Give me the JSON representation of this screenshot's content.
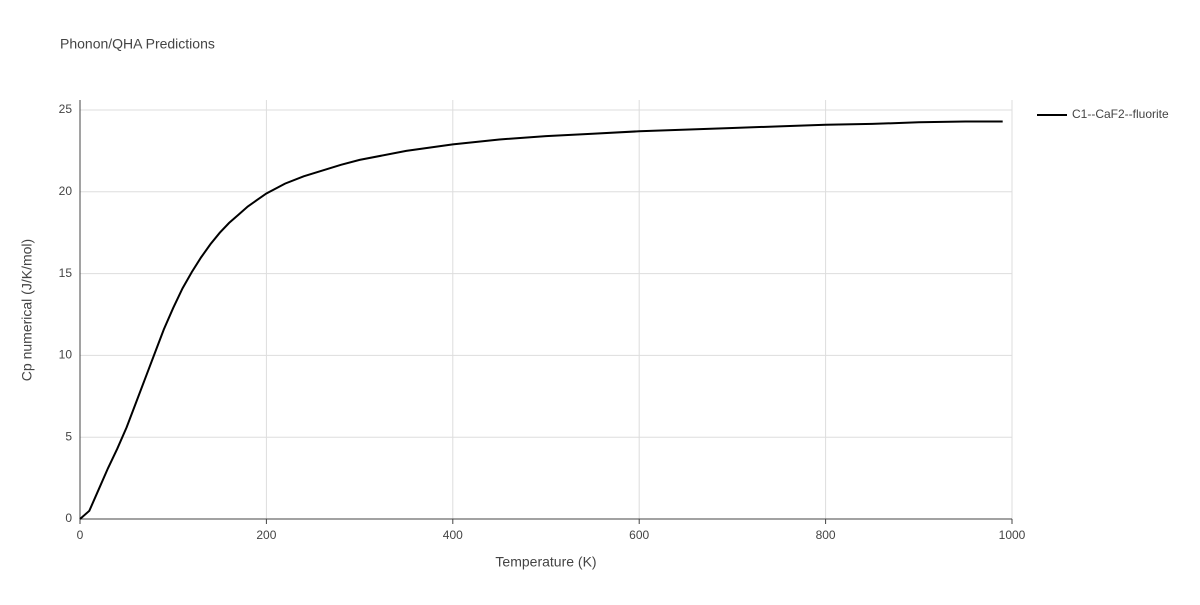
{
  "chart_data": {
    "type": "line",
    "title": "Phonon/QHA Predictions",
    "x_label": "Temperature (K)",
    "y_label": "Cp numerical (J/K/mol)",
    "x": [
      0,
      10,
      20,
      30,
      40,
      50,
      60,
      70,
      80,
      90,
      100,
      110,
      120,
      130,
      140,
      150,
      160,
      170,
      180,
      190,
      200,
      220,
      240,
      260,
      280,
      300,
      350,
      400,
      450,
      500,
      550,
      600,
      650,
      700,
      750,
      800,
      850,
      900,
      950,
      990
    ],
    "series": [
      {
        "name": "C1--CaF2--fluorite",
        "color": "#000000",
        "values": [
          0,
          0.5,
          1.8,
          3.1,
          4.3,
          5.6,
          7.1,
          8.6,
          10.1,
          11.6,
          12.9,
          14.1,
          15.1,
          16.0,
          16.8,
          17.5,
          18.1,
          18.6,
          19.1,
          19.5,
          19.9,
          20.5,
          20.95,
          21.3,
          21.65,
          21.95,
          22.5,
          22.9,
          23.2,
          23.4,
          23.55,
          23.7,
          23.8,
          23.9,
          24.0,
          24.1,
          24.15,
          24.25,
          24.3,
          24.3
        ]
      }
    ],
    "xlim": [
      0,
      1000
    ],
    "xticks": [
      0,
      200,
      400,
      600,
      800,
      1000
    ],
    "ylim": [
      0,
      25
    ],
    "yticks": [
      0,
      5,
      10,
      15,
      20,
      25
    ],
    "grid": true,
    "legend": "right"
  }
}
